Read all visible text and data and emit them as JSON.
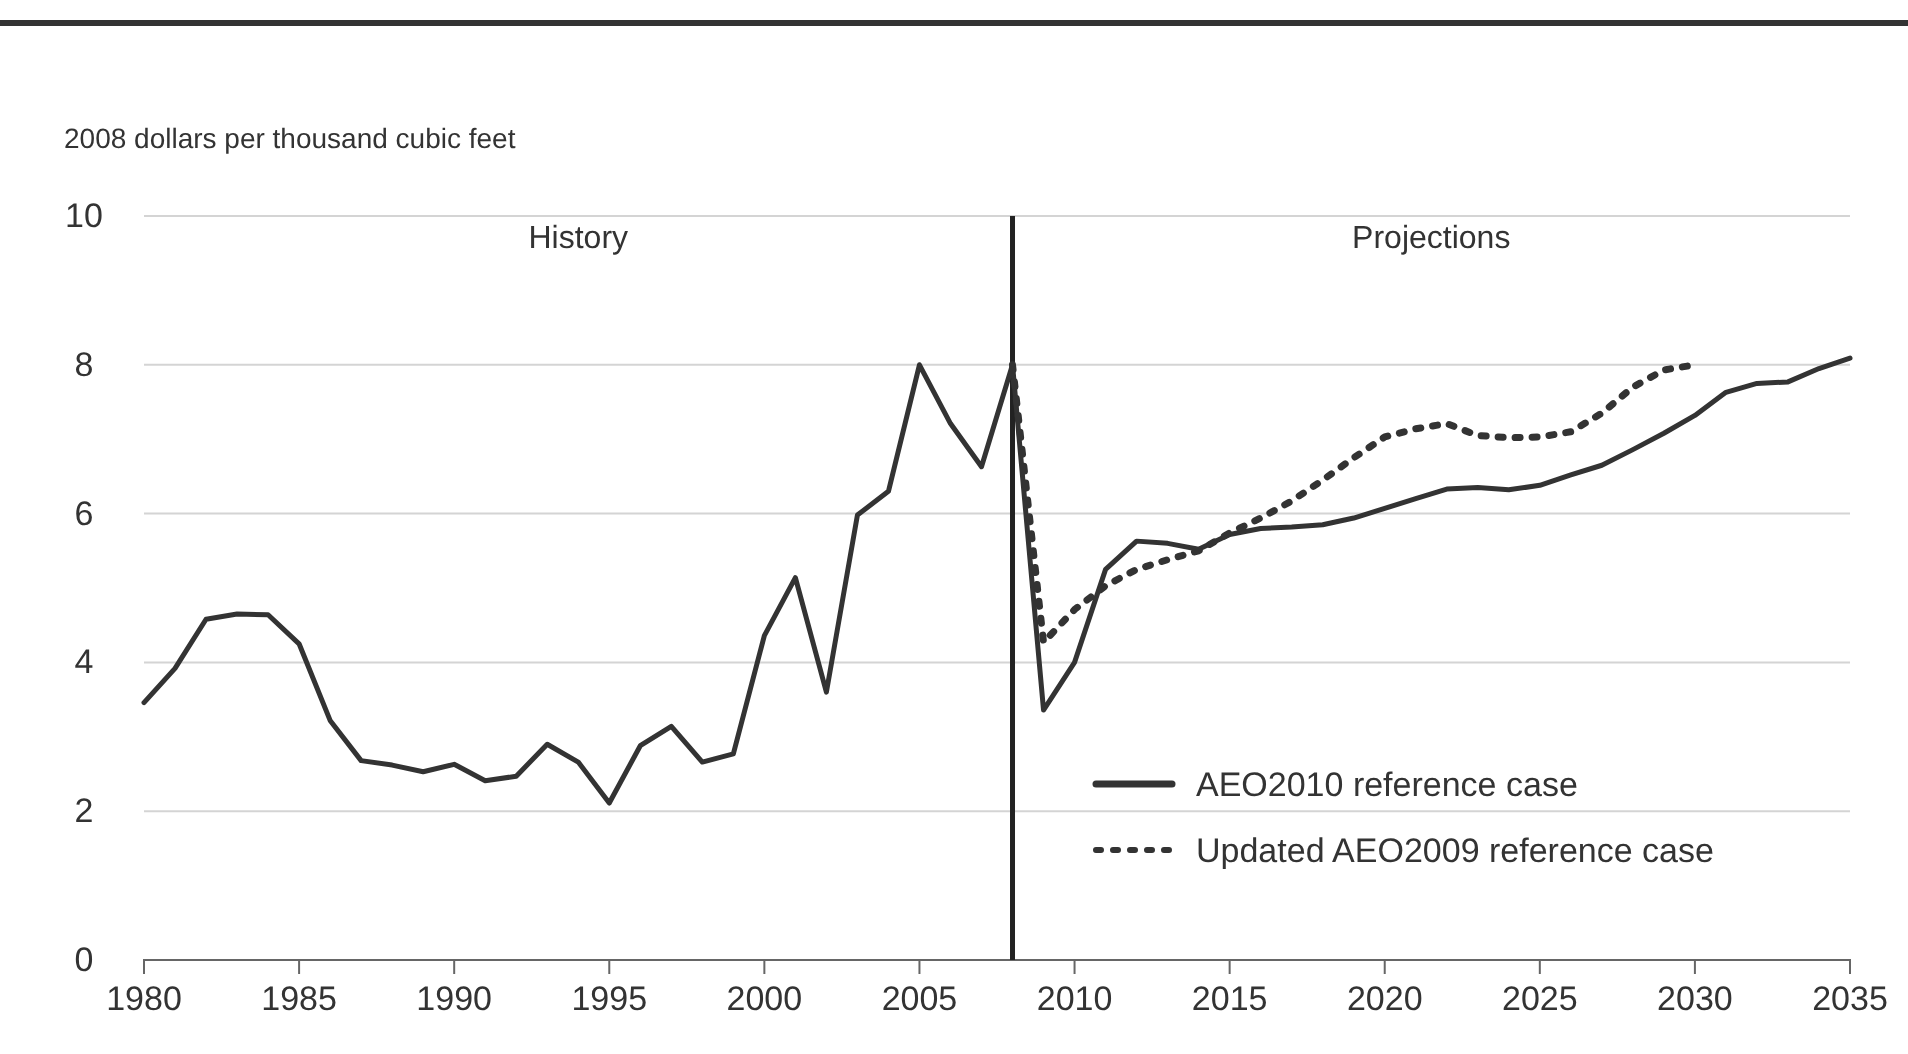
{
  "chart_data": {
    "type": "line",
    "ylabel": "2008 dollars per thousand cubic feet",
    "annotations": [
      "History",
      "Projections"
    ],
    "xlim": [
      1980,
      2035
    ],
    "xticks": [
      1980,
      1985,
      1990,
      1995,
      2000,
      2005,
      2010,
      2015,
      2020,
      2025,
      2030,
      2035
    ],
    "ylim": [
      0,
      10
    ],
    "yticks": [
      0,
      2,
      4,
      6,
      8,
      10
    ],
    "grid": "y",
    "legend": "bottom right",
    "ref_lines": [
      {
        "axis": "x",
        "value": 2008,
        "color": "#222222"
      }
    ],
    "series": [
      {
        "name": "AEO2010 reference case",
        "color": "#333333",
        "line_style": "solid",
        "x": [
          1980,
          1981,
          1982,
          1983,
          1984,
          1985,
          1986,
          1987,
          1988,
          1989,
          1990,
          1991,
          1992,
          1993,
          1994,
          1995,
          1996,
          1997,
          1998,
          1999,
          2000,
          2001,
          2002,
          2003,
          2004,
          2005,
          2006,
          2007,
          2008,
          2009,
          2010,
          2011,
          2012,
          2013,
          2014,
          2015,
          2016,
          2017,
          2018,
          2019,
          2020,
          2021,
          2022,
          2023,
          2024,
          2025,
          2026,
          2027,
          2028,
          2029,
          2030,
          2031,
          2032,
          2033,
          2034,
          2035
        ],
        "values": [
          3.46,
          3.92,
          4.58,
          4.65,
          4.64,
          4.25,
          3.22,
          2.68,
          2.62,
          2.53,
          2.63,
          2.41,
          2.47,
          2.9,
          2.66,
          2.11,
          2.88,
          3.14,
          2.66,
          2.77,
          4.36,
          5.14,
          3.6,
          5.98,
          6.3,
          8.0,
          7.21,
          6.63,
          8.0,
          3.36,
          4.0,
          5.25,
          5.63,
          5.6,
          5.52,
          5.72,
          5.8,
          5.82,
          5.85,
          5.94,
          6.07,
          6.2,
          6.33,
          6.35,
          6.32,
          6.38,
          6.52,
          6.65,
          6.86,
          7.08,
          7.32,
          7.63,
          7.75,
          7.77,
          7.95,
          8.09
        ]
      },
      {
        "name": "Updated AEO2009 reference case",
        "color": "#333333",
        "line_style": "dotted",
        "x": [
          2008,
          2009,
          2010,
          2011,
          2012,
          2013,
          2014,
          2015,
          2016,
          2017,
          2018,
          2019,
          2020,
          2021,
          2022,
          2023,
          2024,
          2025,
          2026,
          2027,
          2028,
          2029,
          2030
        ],
        "values": [
          8.0,
          4.27,
          4.71,
          5.03,
          5.25,
          5.38,
          5.5,
          5.74,
          5.94,
          6.17,
          6.45,
          6.75,
          7.03,
          7.14,
          7.21,
          7.05,
          7.02,
          7.03,
          7.1,
          7.35,
          7.7,
          7.93,
          8.0
        ]
      }
    ]
  }
}
